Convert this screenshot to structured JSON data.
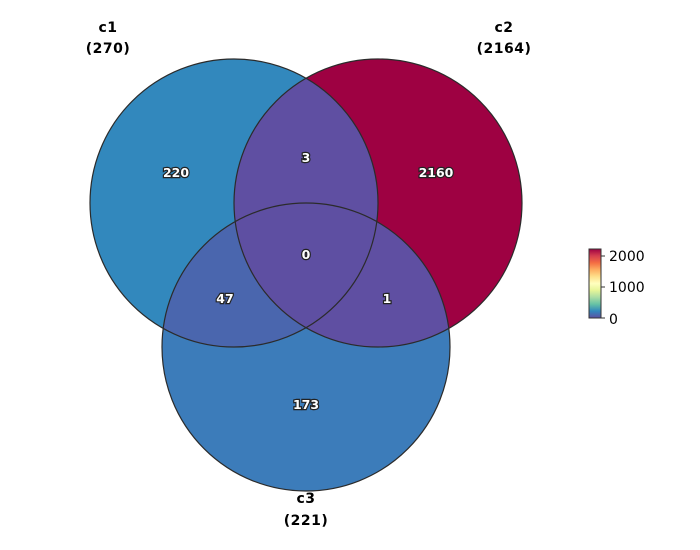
{
  "sets": [
    {
      "name": "c1",
      "size_label": "(270)"
    },
    {
      "name": "c2",
      "size_label": "(2164)"
    },
    {
      "name": "c3",
      "size_label": "(221)"
    }
  ],
  "regions": {
    "c1_only": "220",
    "c2_only": "2160",
    "c3_only": "173",
    "c1_c2": "3",
    "c1_c3": "47",
    "c2_c3": "1",
    "c1_c2_c3": "0"
  },
  "colorbar": {
    "ticks": [
      "2000",
      "1000",
      "0"
    ],
    "colors": [
      "#9e0142",
      "#d53e4f",
      "#f46d43",
      "#fdae61",
      "#fee08b",
      "#ffffbf",
      "#e6f598",
      "#abdda4",
      "#66c2a5",
      "#3288bd",
      "#5e4fa2"
    ]
  },
  "colors": {
    "c1_only": "#3288bd",
    "c2_only": "#9e0142",
    "c3_only": "#3c7cba",
    "c1_c2": "#5f4fa2",
    "c1_c3": "#4a66ae",
    "c2_c3": "#5f4fa2",
    "c1_c2_c3": "#5e4fa2"
  }
}
